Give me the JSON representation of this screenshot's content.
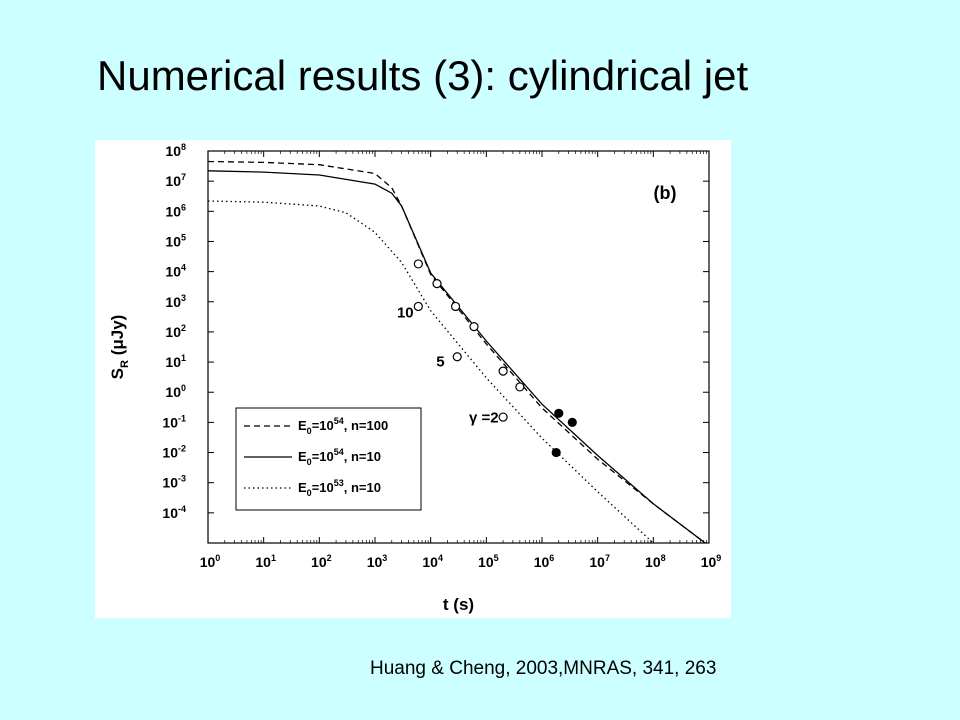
{
  "slide": {
    "title": "Numerical results (3): cylindrical jet",
    "citation": "Huang & Cheng, 2003,MNRAS, 341, 263"
  },
  "chart_data": {
    "type": "line",
    "panel_label": "(b)",
    "xlabel": "t (s)",
    "ylabel_main": "S",
    "ylabel_sub": "R",
    "ylabel_unit": " (μJy)",
    "xscale": "log",
    "yscale": "log",
    "xlim": [
      1,
      1000000000
    ],
    "ylim": [
      1e-05,
      100000000
    ],
    "x_ticks": [
      {
        "base": "10",
        "exp": "0"
      },
      {
        "base": "10",
        "exp": "1"
      },
      {
        "base": "10",
        "exp": "2"
      },
      {
        "base": "10",
        "exp": "3"
      },
      {
        "base": "10",
        "exp": "4"
      },
      {
        "base": "10",
        "exp": "5"
      },
      {
        "base": "10",
        "exp": "6"
      },
      {
        "base": "10",
        "exp": "7"
      },
      {
        "base": "10",
        "exp": "8"
      },
      {
        "base": "10",
        "exp": "9"
      }
    ],
    "y_ticks": [
      {
        "base": "10",
        "exp": "-4"
      },
      {
        "base": "10",
        "exp": "-3"
      },
      {
        "base": "10",
        "exp": "-2"
      },
      {
        "base": "10",
        "exp": "-1"
      },
      {
        "base": "10",
        "exp": "0"
      },
      {
        "base": "10",
        "exp": "1"
      },
      {
        "base": "10",
        "exp": "2"
      },
      {
        "base": "10",
        "exp": "3"
      },
      {
        "base": "10",
        "exp": "4"
      },
      {
        "base": "10",
        "exp": "5"
      },
      {
        "base": "10",
        "exp": "6"
      },
      {
        "base": "10",
        "exp": "7"
      },
      {
        "base": "10",
        "exp": "8"
      }
    ],
    "series": [
      {
        "legend_main": "E",
        "legend_sub": "0",
        "legend_mid": "=10",
        "legend_exp": "54",
        "legend_tail": ", n=100",
        "style": "dashed",
        "x": [
          1,
          10,
          100,
          1000,
          2000,
          3000,
          10000,
          100000,
          1000000,
          10000000,
          100000000,
          1000000000
        ],
        "y": [
          45000000,
          42000000,
          35000000,
          18000000,
          6000000,
          1500000,
          8000,
          40,
          0.3,
          0.006,
          0.0002,
          8e-06
        ]
      },
      {
        "legend_main": "E",
        "legend_sub": "0",
        "legend_mid": "=10",
        "legend_exp": "54",
        "legend_tail": ", n=10",
        "style": "solid",
        "x": [
          1,
          10,
          100,
          1000,
          2000,
          3000,
          10000,
          100000,
          1000000,
          10000000,
          100000000,
          1000000000
        ],
        "y": [
          22000000,
          20000000,
          16000000,
          8000000,
          4000000,
          1500000,
          9000,
          50,
          0.4,
          0.008,
          0.0002,
          8e-06
        ]
      },
      {
        "legend_main": "E",
        "legend_sub": "0",
        "legend_mid": "=10",
        "legend_exp": "53",
        "legend_tail": ", n=10",
        "style": "dotted",
        "x": [
          1,
          10,
          100,
          300,
          1000,
          3000,
          10000,
          100000,
          1000000,
          10000000,
          100000000,
          200000000
        ],
        "y": [
          2200000,
          2000000,
          1500000,
          900000,
          200000,
          20000,
          500,
          3,
          0.03,
          0.0005,
          1e-05,
          4e-06
        ]
      }
    ],
    "markers": [
      {
        "x": 6000,
        "y": 18000,
        "shape": "open-circle"
      },
      {
        "x": 13000,
        "y": 4000,
        "shape": "open-circle"
      },
      {
        "x": 28000,
        "y": 700,
        "shape": "open-circle"
      },
      {
        "x": 60000,
        "y": 150,
        "shape": "open-circle"
      },
      {
        "x": 200000,
        "y": 5,
        "shape": "open-circle"
      },
      {
        "x": 400000,
        "y": 1.5,
        "shape": "open-circle"
      },
      {
        "x": 6000,
        "y": 700,
        "shape": "open-circle"
      },
      {
        "x": 30000,
        "y": 15,
        "shape": "open-circle"
      },
      {
        "x": 200000,
        "y": 0.15,
        "shape": "open-circle"
      },
      {
        "x": 2000000,
        "y": 0.2,
        "shape": "filled-circle"
      },
      {
        "x": 3500000,
        "y": 0.1,
        "shape": "filled-circle"
      },
      {
        "x": 1800000,
        "y": 0.01,
        "shape": "filled-circle"
      }
    ],
    "annotations": [
      {
        "text": "10",
        "x": 3500,
        "y": 300
      },
      {
        "text": "5",
        "x": 15000,
        "y": 7
      },
      {
        "text": "γ =2",
        "x": 90000,
        "y": 0.1
      }
    ],
    "legend_position": "lower-left"
  }
}
